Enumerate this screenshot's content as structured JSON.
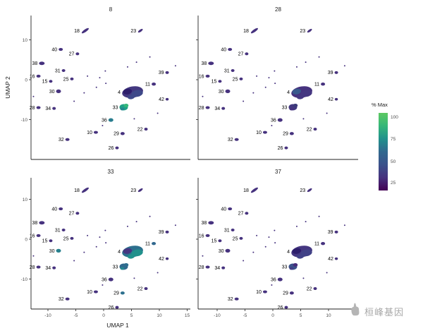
{
  "figure": {
    "watermark_text": "桓峰基因"
  },
  "legend": {
    "title": "% Max",
    "tick_labels": [
      "100",
      "75",
      "50",
      "25"
    ],
    "gradient_colors": [
      "#5ec962",
      "#35b779",
      "#21918c",
      "#31688e",
      "#3b528b",
      "#46327e",
      "#440154"
    ]
  },
  "chart_data": {
    "type": "scatter",
    "subtype": "umap-feature-plot-facets",
    "title": "",
    "xlabel": "UMAP 1",
    "ylabel": "UMAP 2",
    "facets": [
      "8",
      "28",
      "33",
      "37"
    ],
    "x_range": [
      -14,
      15.5
    ],
    "y_range": [
      -20,
      14
    ],
    "x_ticks_bottom_left": [
      -10,
      -5,
      0,
      5,
      10,
      15
    ],
    "x_ticks_bottom_right": [
      -10,
      -5,
      0,
      5,
      10
    ],
    "y_ticks": [
      10,
      0,
      -10
    ],
    "colorbar": {
      "title": "% Max",
      "ticks": [
        100,
        75,
        50,
        25
      ]
    },
    "clusters": [
      {
        "label": "18",
        "x": -3.3,
        "y": 12.3,
        "rx": 6,
        "ry": 1.8,
        "rot": -35
      },
      {
        "label": "23",
        "x": 6.6,
        "y": 12.3,
        "rx": 4,
        "ry": 1.6,
        "rot": -35
      },
      {
        "label": "40",
        "x": -7.7,
        "y": 7.6,
        "rx": 3,
        "ry": 2
      },
      {
        "label": "27",
        "x": -4.7,
        "y": 6.5,
        "rx": 2.5,
        "ry": 2
      },
      {
        "label": "38",
        "x": -11.1,
        "y": 4.1,
        "rx": 4,
        "ry": 2.4
      },
      {
        "label": "31",
        "x": -7.2,
        "y": 2.3,
        "rx": 2.5,
        "ry": 2
      },
      {
        "label": "16",
        "x": -11.7,
        "y": 0.9,
        "rx": 3,
        "ry": 2
      },
      {
        "label": "15",
        "x": -9.5,
        "y": -0.4,
        "rx": 2.5,
        "ry": 2
      },
      {
        "label": "25",
        "x": -5.7,
        "y": 0.2,
        "rx": 2.5,
        "ry": 2
      },
      {
        "label": "30",
        "x": -8.1,
        "y": -2.9,
        "rx": 3.5,
        "ry": 2.6
      },
      {
        "label": "39",
        "x": 11.4,
        "y": 1.8,
        "rx": 2.5,
        "ry": 2
      },
      {
        "label": "11",
        "x": 9.0,
        "y": -1.1,
        "rx": 3,
        "ry": 2.2
      },
      {
        "label": "4",
        "x": 5.2,
        "y": -3.1,
        "rx": 15,
        "ry": 8,
        "rot": -10,
        "blob": true
      },
      {
        "label": "33",
        "x": 3.6,
        "y": -6.9,
        "rx": 6,
        "ry": 4.5,
        "blob2": true
      },
      {
        "label": "42",
        "x": 11.4,
        "y": -4.9,
        "rx": 2.2,
        "ry": 1.8
      },
      {
        "label": "28",
        "x": -11.7,
        "y": -7.0,
        "rx": 3,
        "ry": 2
      },
      {
        "label": "34",
        "x": -8.9,
        "y": -7.2,
        "rx": 2.5,
        "ry": 2
      },
      {
        "label": "36",
        "x": 1.3,
        "y": -10.1,
        "rx": 3.5,
        "ry": 2.6
      },
      {
        "label": "10",
        "x": -1.4,
        "y": -13.2,
        "rx": 3,
        "ry": 2
      },
      {
        "label": "29",
        "x": 3.4,
        "y": -13.5,
        "rx": 3,
        "ry": 2.2
      },
      {
        "label": "22",
        "x": 7.6,
        "y": -12.4,
        "rx": 2.5,
        "ry": 2
      },
      {
        "label": "26",
        "x": 2.4,
        "y": -17.1,
        "rx": 2.5,
        "ry": 2
      },
      {
        "label": "32",
        "x": -6.5,
        "y": -15.0,
        "rx": 3,
        "ry": 2
      }
    ],
    "specks": [
      [
        -0.7,
        0.5
      ],
      [
        0.4,
        -0.9
      ],
      [
        -2.9,
        0.9
      ],
      [
        5.9,
        4.4
      ],
      [
        8.3,
        5.7
      ],
      [
        12.9,
        3.5
      ],
      [
        -12.6,
        -4.2
      ],
      [
        -3.5,
        -3.3
      ],
      [
        0.3,
        2.2
      ],
      [
        6.8,
        -2.5
      ],
      [
        -5.3,
        -5.4
      ],
      [
        4.3,
        3.2
      ],
      [
        -1.3,
        -1.9
      ],
      [
        9.7,
        -8.4
      ],
      [
        -0.2,
        -11.5
      ],
      [
        5.5,
        -9.8
      ]
    ],
    "panels": [
      {
        "title": "8",
        "overrides": {
          "4": [
            "#433880",
            "#3e4989",
            "#2d1e6b"
          ],
          "33": [
            "#1fa187",
            "#35b779",
            "#25858e"
          ],
          "36": "#287c8e"
        }
      },
      {
        "title": "28",
        "overrides": {
          "4": [
            "#46327e",
            "#453781",
            "#38598c"
          ],
          "33": [
            "#433880",
            "#3b3a79",
            "#46327e"
          ]
        }
      },
      {
        "title": "33",
        "overrides": {
          "4": [
            "#2d708e",
            "#21918c",
            "#453781"
          ],
          "33": [
            "#31688e",
            "#2e6d8e",
            "#25858e"
          ],
          "29": "#2d708e",
          "11": "#31688e",
          "30": "#27808e"
        }
      },
      {
        "title": "37",
        "overrides": {
          "4": [
            "#453781",
            "#414287",
            "#2d1e6b"
          ],
          "33": [
            "#3b528b",
            "#472d7b",
            "#433e85"
          ]
        }
      }
    ]
  }
}
